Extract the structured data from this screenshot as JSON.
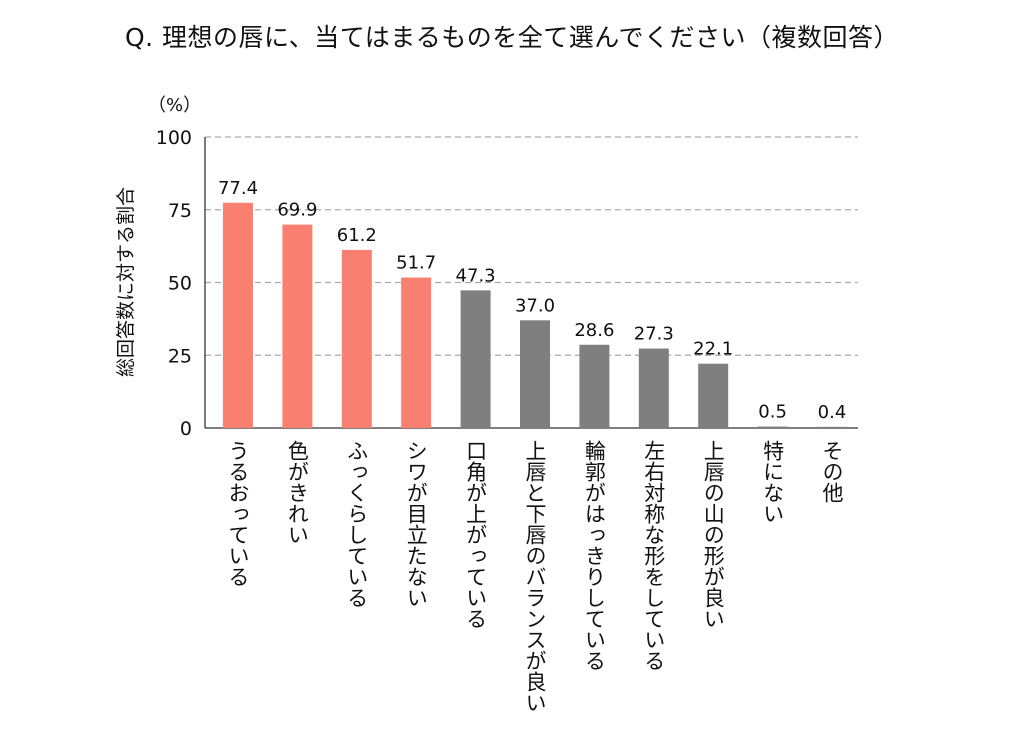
{
  "chart_data": {
    "type": "bar",
    "title": "Q. 理想の唇に、当てはまるものを全て選んでください（複数回答）",
    "ylabel": "総回答数に対する割合",
    "unit": "（%）",
    "ylim": [
      0,
      100
    ],
    "yticks": [
      0,
      25,
      50,
      75,
      100
    ],
    "grid": true,
    "categories": [
      "うるおっている",
      "色がきれい",
      "ふっくらしている",
      "シワが目立たない",
      "口角が上がっている",
      "上唇と下唇のバランスが良い",
      "輪郭がはっきりしている",
      "左右対称な形をしている",
      "上唇の山の形が良い",
      "特にない",
      "その他"
    ],
    "values": [
      77.4,
      69.9,
      61.2,
      51.7,
      47.3,
      37.0,
      28.6,
      27.3,
      22.1,
      0.5,
      0.4
    ],
    "value_labels": [
      "77.4",
      "69.9",
      "61.2",
      "51.7",
      "47.3",
      "37.0",
      "28.6",
      "27.3",
      "22.1",
      "0.5",
      "0.4"
    ],
    "highlight_count": 4,
    "colors": {
      "highlight": "#F97F71",
      "normal": "#7F7F7F",
      "grid": "#AAAAAA",
      "axis": "#333333"
    }
  }
}
